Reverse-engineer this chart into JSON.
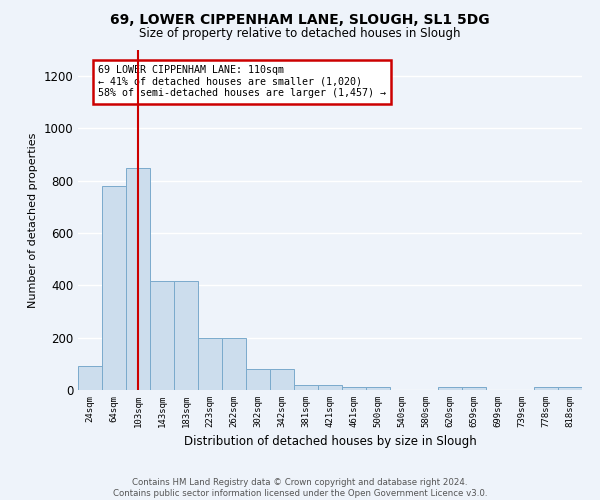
{
  "title1": "69, LOWER CIPPENHAM LANE, SLOUGH, SL1 5DG",
  "title2": "Size of property relative to detached houses in Slough",
  "xlabel": "Distribution of detached houses by size in Slough",
  "ylabel": "Number of detached properties",
  "categories": [
    "24sqm",
    "64sqm",
    "103sqm",
    "143sqm",
    "183sqm",
    "223sqm",
    "262sqm",
    "302sqm",
    "342sqm",
    "381sqm",
    "421sqm",
    "461sqm",
    "500sqm",
    "540sqm",
    "580sqm",
    "620sqm",
    "659sqm",
    "699sqm",
    "739sqm",
    "778sqm",
    "818sqm"
  ],
  "values": [
    90,
    780,
    850,
    415,
    415,
    200,
    200,
    80,
    80,
    20,
    20,
    10,
    10,
    0,
    0,
    10,
    10,
    0,
    0,
    10,
    10
  ],
  "bar_color": "#ccdded",
  "bar_edge_color": "#7aaacc",
  "vline_color": "#cc0000",
  "vline_x_index": 2,
  "annotation_text": "69 LOWER CIPPENHAM LANE: 110sqm\n← 41% of detached houses are smaller (1,020)\n58% of semi-detached houses are larger (1,457) →",
  "annotation_box_color": "white",
  "annotation_box_edge_color": "#cc0000",
  "ylim": [
    0,
    1300
  ],
  "yticks": [
    0,
    200,
    400,
    600,
    800,
    1000,
    1200
  ],
  "bg_color": "#eef3fa",
  "grid_color": "#ffffff",
  "footnote": "Contains HM Land Registry data © Crown copyright and database right 2024.\nContains public sector information licensed under the Open Government Licence v3.0."
}
